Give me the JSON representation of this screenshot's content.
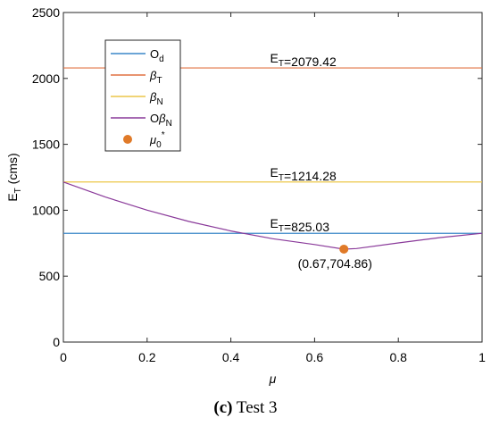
{
  "chart_data": {
    "type": "line",
    "x_domain": [
      0,
      1
    ],
    "ylim": [
      0,
      2500
    ],
    "xlim": [
      0,
      1
    ],
    "xticks": [
      "0",
      "0.2",
      "0.4",
      "0.6",
      "0.8",
      "1"
    ],
    "yticks": [
      "0",
      "500",
      "1000",
      "1500",
      "2000",
      "2500"
    ],
    "ylabel": {
      "main": "E",
      "sub": "T",
      "suffix": " (cms)"
    },
    "xlabel": "μ",
    "grid": false,
    "legend_position": "top-left",
    "series": [
      {
        "key": "od",
        "name": "O_d",
        "color": "#3a87c8",
        "type": "hline",
        "y": 825.03
      },
      {
        "key": "bt",
        "name": "β_T",
        "color": "#e07040",
        "type": "hline",
        "y": 2079.42
      },
      {
        "key": "bn",
        "name": "β_N",
        "color": "#ecc648",
        "type": "hline",
        "y": 1214.28
      },
      {
        "key": "obn",
        "name": "Oβ_N",
        "color": "#8a3a9a",
        "type": "curve",
        "x": [
          0,
          0.1,
          0.2,
          0.3,
          0.4,
          0.5,
          0.6,
          0.67,
          0.7,
          0.8,
          0.9,
          1.0
        ],
        "y": [
          1214.28,
          1100.5,
          1000.7,
          914.8,
          842.6,
          784.2,
          739.8,
          704.86,
          709.2,
          752.2,
          793.0,
          825.03
        ]
      },
      {
        "key": "mu",
        "name": "μ_0*",
        "color": "#e07a28",
        "type": "point",
        "x": 0.67,
        "y": 704.86
      }
    ],
    "legend": [
      {
        "key": "od",
        "main": "O",
        "sub": "d"
      },
      {
        "key": "bt",
        "main": "β",
        "sub": "T"
      },
      {
        "key": "bn",
        "main": "β",
        "sub": "N"
      },
      {
        "key": "obn",
        "main": "Oβ",
        "sub": "N"
      },
      {
        "key": "mu",
        "main": "μ",
        "sub": "0",
        "sup": "*"
      }
    ],
    "annotations": [
      {
        "key": "a_bt",
        "main": "E",
        "sub": "T",
        "text": "=2079.42",
        "x": 0.628,
        "y": 2079.42
      },
      {
        "key": "a_bn",
        "main": "E",
        "sub": "T",
        "text": "=1214.28",
        "x": 0.628,
        "y": 1214.28
      },
      {
        "key": "a_od",
        "main": "E",
        "sub": "T",
        "text": "=825.03",
        "x": 0.628,
        "y": 825.03
      },
      {
        "key": "a_mu",
        "main": "",
        "sub": "",
        "text": "(0.67,704.86)",
        "x": 0.67,
        "y": 704.86
      }
    ]
  },
  "caption": {
    "label": "(c)",
    "text": " Test 3"
  }
}
